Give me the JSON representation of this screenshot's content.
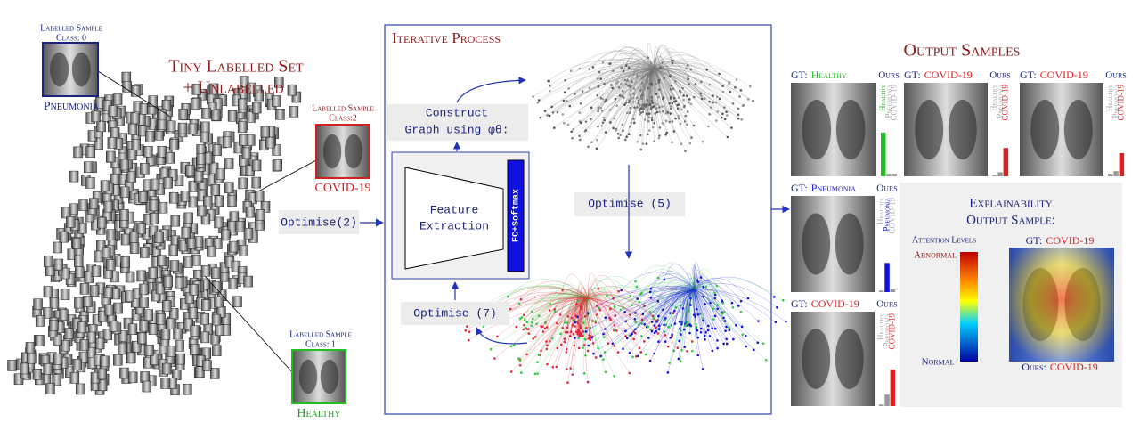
{
  "left": {
    "title": [
      "Tiny Labelled Set",
      "+ Unlabelled"
    ],
    "samples": [
      {
        "heading": "Labelled Sample",
        "class": "Class: 0",
        "label": "Pneumonia"
      },
      {
        "heading": "Labelled Sample",
        "class": "Class:2",
        "label": "COVID-19"
      },
      {
        "heading": "Labelled Sample",
        "class": "Class: 1",
        "label": "Healthy"
      }
    ],
    "step": "Optimise(2)"
  },
  "process": {
    "title": "Iterative Process",
    "construct": [
      "Construct",
      "Graph using φθ:"
    ],
    "feature": [
      "Feature",
      "Extraction"
    ],
    "head": "FC+Softmax",
    "step5": "Optimise (5)",
    "step7": "Optimise (7)"
  },
  "output": {
    "title": "Output Samples",
    "gt_prefix": "GT:",
    "ours": "Ours",
    "classes": [
      "Healthy",
      "Pneumonia",
      "COVID-19"
    ],
    "panels": [
      {
        "gt": "Healthy",
        "scores": [
          0.85,
          0.05,
          0.05
        ]
      },
      {
        "gt": "COVID-19",
        "scores": [
          0.03,
          0.08,
          0.55
        ]
      },
      {
        "gt": "COVID-19",
        "scores": [
          0.05,
          0.1,
          0.45
        ]
      },
      {
        "gt": "Pneumonia",
        "scores": [
          0.03,
          0.55,
          0.05
        ]
      },
      {
        "gt": "COVID-19",
        "scores": [
          0.03,
          0.22,
          0.7
        ]
      }
    ],
    "explain": {
      "title": [
        "Explainability",
        "Output Sample:"
      ],
      "legend_title": "Attention Levels",
      "high": "Abnormal",
      "low": "Normal",
      "gt": "COVID-19",
      "ours_prefix": "Ours:",
      "ours": "COVID-19"
    }
  }
}
